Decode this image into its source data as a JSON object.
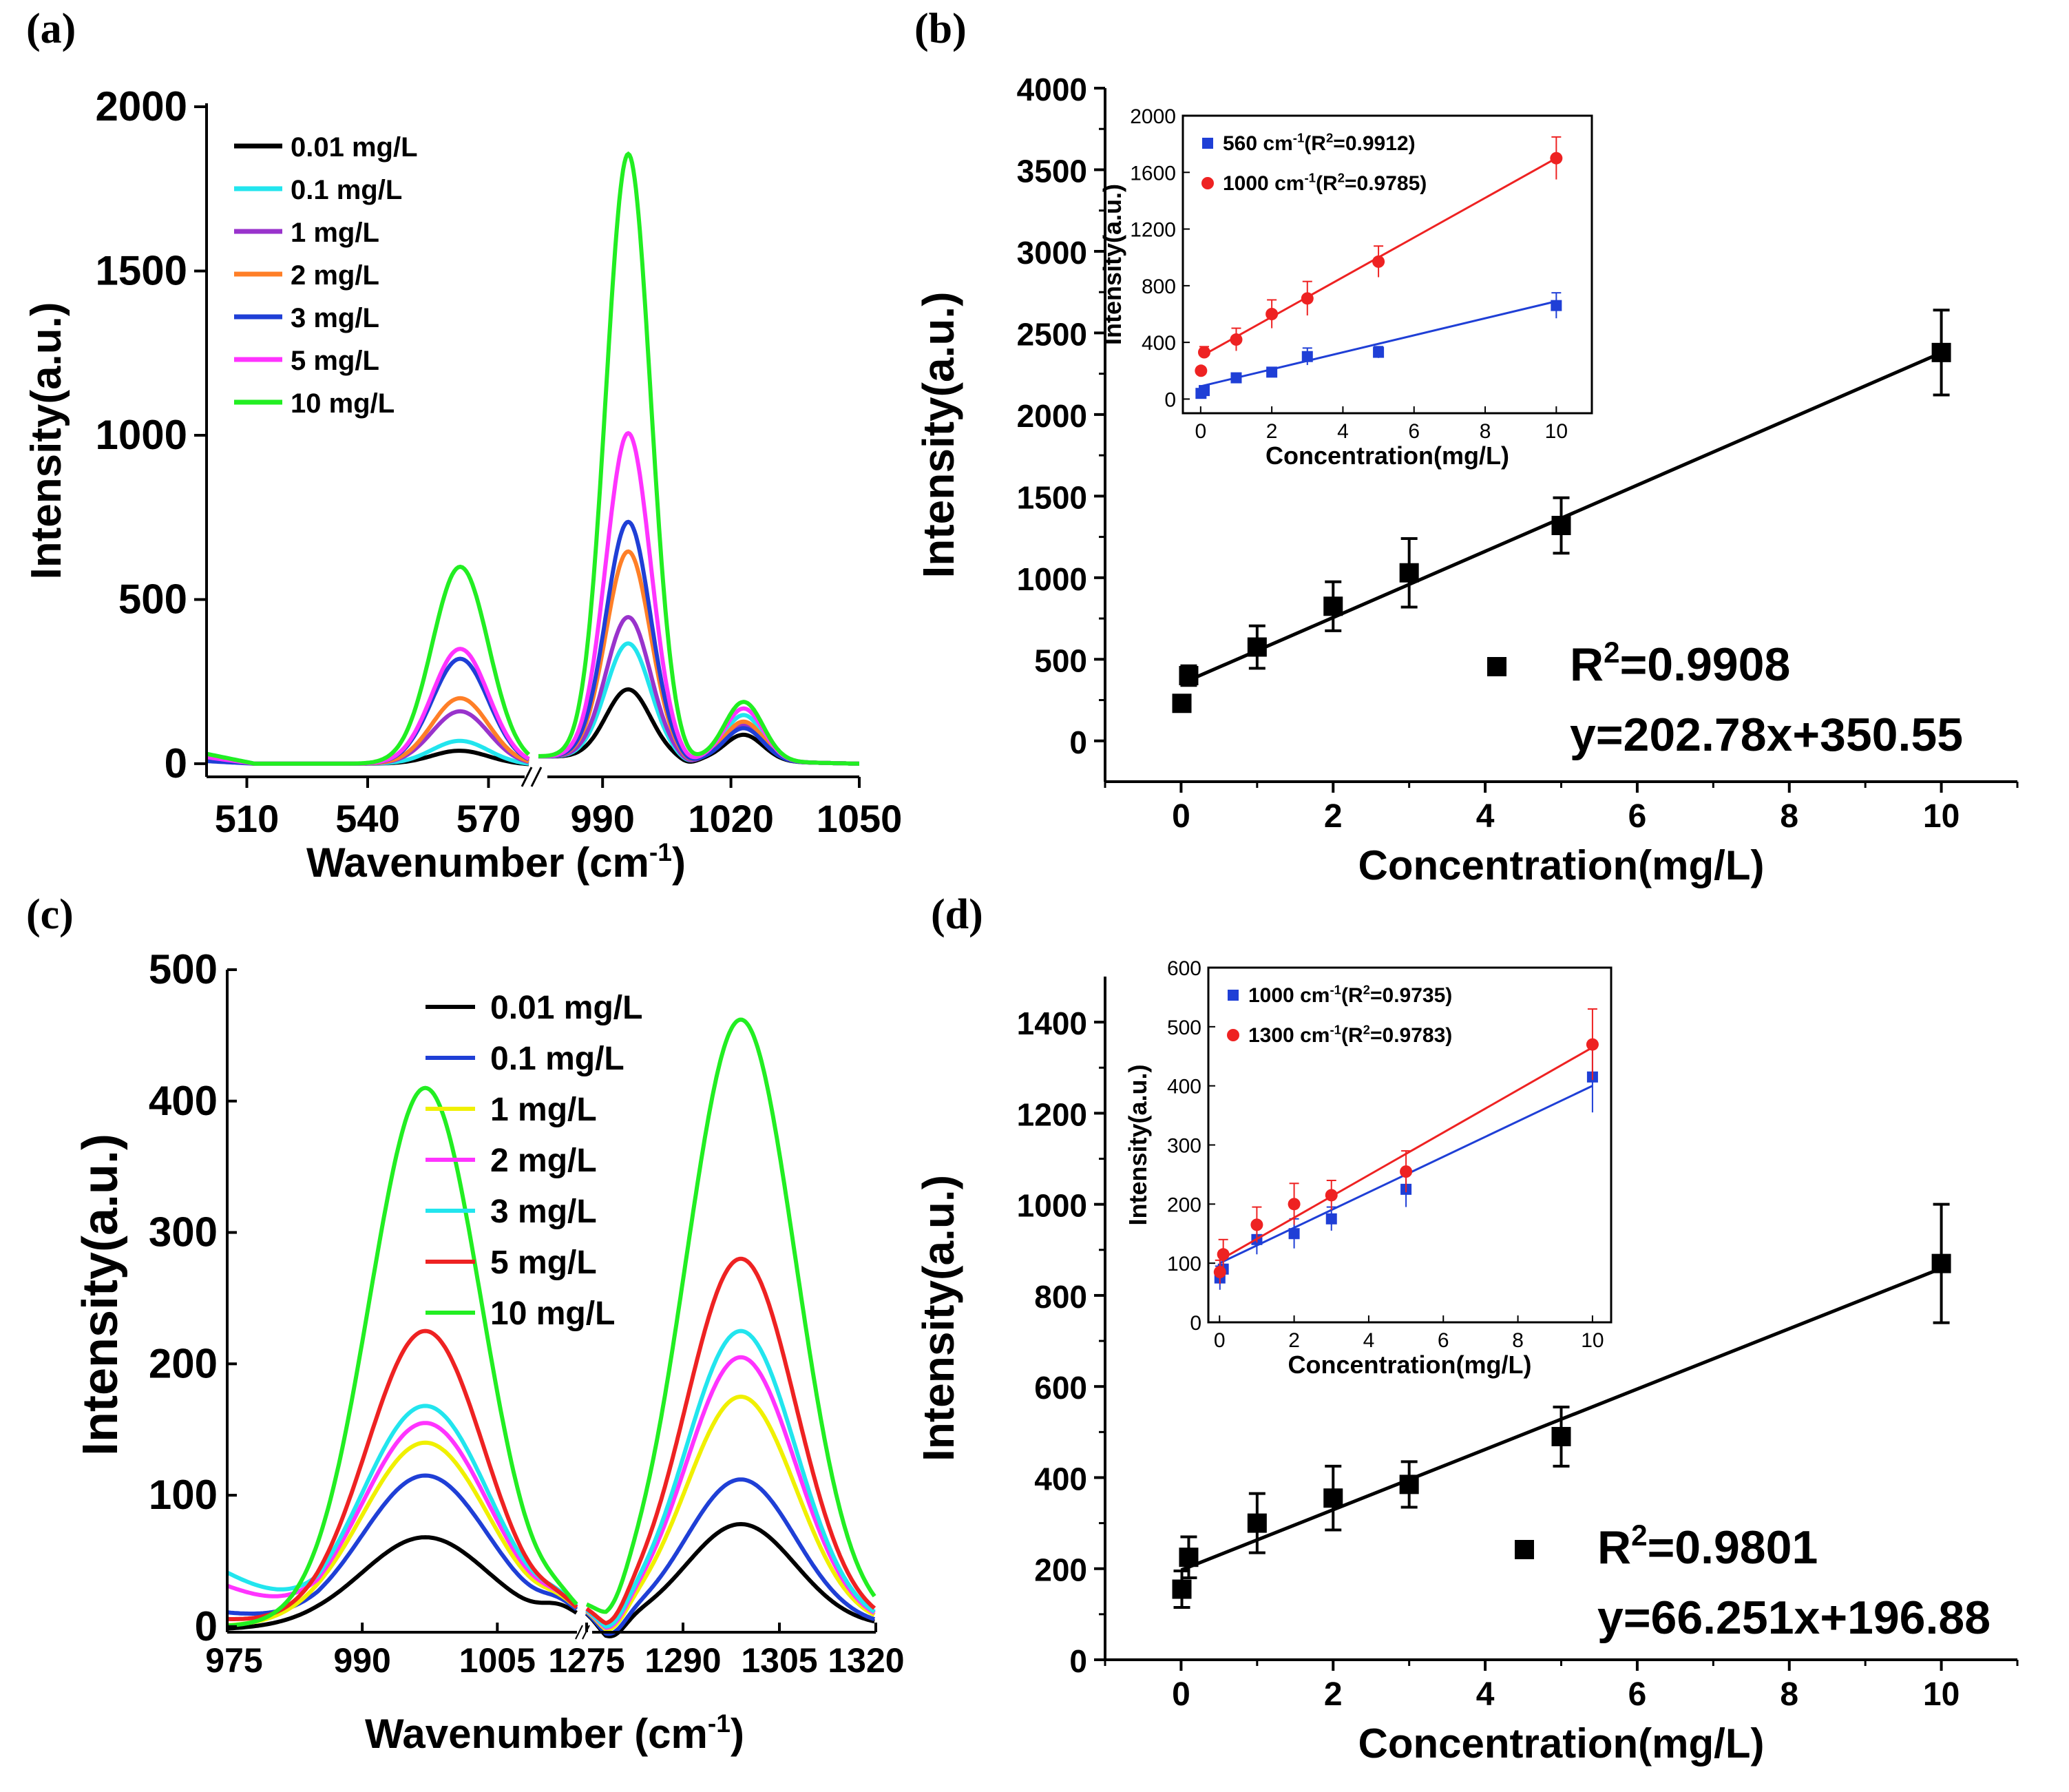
{
  "chart_data": [
    {
      "id": "a",
      "panel_label": "(a)",
      "type": "line",
      "xlabel": "Wavenumber (cm",
      "xlabel_sup": "-1",
      "xlabel_end": ")",
      "ylabel": "Intensity(a.u.)",
      "ylim": [
        -40,
        2000
      ],
      "yticks": [
        "0",
        "500",
        "1000",
        "1500",
        "2000"
      ],
      "x_segments": [
        {
          "range": [
            500,
            580
          ],
          "ticks": [
            "510",
            "540",
            "570"
          ]
        },
        {
          "range": [
            975,
            1050
          ],
          "ticks": [
            "990",
            "1020",
            "1050"
          ]
        }
      ],
      "series": [
        {
          "name": "0.01 mg/L",
          "color": "#000000",
          "peak1": 40,
          "peak2": 210,
          "peak3": 80
        },
        {
          "name": "0.1 mg/L",
          "color": "#22e5ee",
          "peak1": 70,
          "peak2": 350,
          "peak3": 140
        },
        {
          "name": "1 mg/L",
          "color": "#9933cc",
          "peak1": 160,
          "peak2": 430,
          "peak3": 110
        },
        {
          "name": "2 mg/L",
          "color": "#ff7f27",
          "peak1": 200,
          "peak2": 630,
          "peak3": 120
        },
        {
          "name": "3 mg/L",
          "color": "#1f3fd6",
          "peak1": 320,
          "peak2": 720,
          "peak3": 100
        },
        {
          "name": "5 mg/L",
          "color": "#ff33ff",
          "peak1": 350,
          "peak2": 990,
          "peak3": 160
        },
        {
          "name": "10 mg/L",
          "color": "#22ee22",
          "peak1": 600,
          "peak2": 1840,
          "peak3": 180
        }
      ]
    },
    {
      "id": "b",
      "panel_label": "(b)",
      "type": "scatter",
      "xlabel": "Concentration(mg/L)",
      "ylabel": "Intensity(a.u.)",
      "xlim": [
        -1,
        11
      ],
      "ylim": [
        -250,
        4000
      ],
      "xticks": [
        "0",
        "2",
        "4",
        "6",
        "8",
        "10"
      ],
      "yticks": [
        "0",
        "500",
        "1000",
        "1500",
        "2000",
        "2500",
        "3000",
        "3500",
        "4000"
      ],
      "points": [
        {
          "x": 0.01,
          "y": 230,
          "err": 0
        },
        {
          "x": 0.1,
          "y": 400,
          "err": 60
        },
        {
          "x": 1,
          "y": 575,
          "err": 130
        },
        {
          "x": 2,
          "y": 825,
          "err": 150
        },
        {
          "x": 3,
          "y": 1030,
          "err": 210
        },
        {
          "x": 5,
          "y": 1320,
          "err": 170
        },
        {
          "x": 10,
          "y": 2380,
          "err": 260
        }
      ],
      "fit": {
        "slope": 202.78,
        "intercept": 350.55
      },
      "r2_label": "R",
      "r2_sup": "2",
      "r2_value": "=0.9908",
      "equation": "y=202.78x+350.55",
      "inset": {
        "xlabel": "Concentration(mg/L)",
        "ylabel": "Intensity(a.u.)",
        "xlim": [
          -0.5,
          11
        ],
        "ylim": [
          -100,
          2000
        ],
        "xticks": [
          "0",
          "2",
          "4",
          "6",
          "8",
          "10"
        ],
        "yticks": [
          "0",
          "400",
          "800",
          "1200",
          "1600",
          "2000"
        ],
        "series": [
          {
            "name": "560 cm",
            "sup": "-1",
            "r2": "(R",
            "r2sup": "2",
            "r2val": "=0.9912)",
            "color": "#1f3fd6",
            "marker": "square",
            "points": [
              [
                0.01,
                40,
                0
              ],
              [
                0.1,
                60,
                30
              ],
              [
                1,
                150,
                25
              ],
              [
                2,
                190,
                30
              ],
              [
                3,
                300,
                60
              ],
              [
                5,
                330,
                40
              ],
              [
                10,
                660,
                90
              ]
            ],
            "fit": {
              "slope": 60,
              "intercept": 90
            }
          },
          {
            "name": "1000 cm",
            "sup": "-1",
            "r2": "(R",
            "r2sup": "2",
            "r2val": "=0.9785)",
            "color": "#ee2222",
            "marker": "circle",
            "points": [
              [
                0.01,
                200,
                0
              ],
              [
                0.1,
                330,
                40
              ],
              [
                1,
                420,
                80
              ],
              [
                2,
                600,
                100
              ],
              [
                3,
                710,
                120
              ],
              [
                5,
                970,
                110
              ],
              [
                10,
                1700,
                150
              ]
            ],
            "fit": {
              "slope": 140,
              "intercept": 300
            }
          }
        ]
      }
    },
    {
      "id": "c",
      "panel_label": "(c)",
      "type": "line",
      "xlabel": "Wavenumber (cm",
      "xlabel_sup": "-1",
      "xlabel_end": ")",
      "ylabel": "Intensity(a.u.)",
      "ylim": [
        -20,
        500
      ],
      "yticks": [
        "0",
        "100",
        "200",
        "300",
        "400",
        "500"
      ],
      "x_segments": [
        {
          "range": [
            975,
            1014
          ],
          "ticks": [
            "975",
            "990",
            "1005"
          ]
        },
        {
          "range": [
            1275,
            1320
          ],
          "ticks": [
            "1275",
            "1290",
            "1305",
            "1320"
          ]
        }
      ],
      "series": [
        {
          "name": "0.01 mg/L",
          "color": "#000000",
          "peak1": 68,
          "peak2": 78
        },
        {
          "name": "0.1 mg/L",
          "color": "#1f3fd6",
          "peak1": 115,
          "peak2": 112
        },
        {
          "name": "1 mg/L",
          "color": "#f0f000",
          "peak1": 140,
          "peak2": 175
        },
        {
          "name": "2 mg/L",
          "color": "#ff33ff",
          "peak1": 155,
          "peak2": 205
        },
        {
          "name": "3 mg/L",
          "color": "#22e5ee",
          "peak1": 168,
          "peak2": 225
        },
        {
          "name": "5 mg/L",
          "color": "#ee2222",
          "peak1": 225,
          "peak2": 280
        },
        {
          "name": "10 mg/L",
          "color": "#22ee22",
          "peak1": 410,
          "peak2": 462
        }
      ]
    },
    {
      "id": "d",
      "panel_label": "(d)",
      "type": "scatter",
      "xlabel": "Concentration(mg/L)",
      "ylabel": "Intensity(a.u.)",
      "xlim": [
        -1,
        11
      ],
      "ylim": [
        0,
        1500
      ],
      "xticks": [
        "0",
        "2",
        "4",
        "6",
        "8",
        "10"
      ],
      "yticks": [
        "0",
        "200",
        "400",
        "600",
        "800",
        "1000",
        "1200",
        "1400"
      ],
      "points": [
        {
          "x": 0.01,
          "y": 155,
          "err": 40
        },
        {
          "x": 0.1,
          "y": 225,
          "err": 45
        },
        {
          "x": 1,
          "y": 300,
          "err": 65
        },
        {
          "x": 2,
          "y": 355,
          "err": 70
        },
        {
          "x": 3,
          "y": 385,
          "err": 50
        },
        {
          "x": 5,
          "y": 490,
          "err": 65
        },
        {
          "x": 10,
          "y": 870,
          "err": 130
        }
      ],
      "fit": {
        "slope": 66.251,
        "intercept": 196.88
      },
      "r2_label": "R",
      "r2_sup": "2",
      "r2_value": "=0.9801",
      "equation": "y=66.251x+196.88",
      "inset": {
        "xlabel": "Concentration(mg/L)",
        "ylabel": "Intensity(a.u.)",
        "xlim": [
          -0.3,
          10.5
        ],
        "ylim": [
          0,
          600
        ],
        "xticks": [
          "0",
          "2",
          "4",
          "6",
          "8",
          "10"
        ],
        "yticks": [
          "0",
          "100",
          "200",
          "300",
          "400",
          "500",
          "600"
        ],
        "series": [
          {
            "name": "1000 cm",
            "sup": "-1",
            "r2": "(R",
            "r2sup": "2",
            "r2val": "=0.9735)",
            "color": "#1f3fd6",
            "marker": "square",
            "points": [
              [
                0.01,
                75,
                20
              ],
              [
                0.1,
                90,
                20
              ],
              [
                1,
                140,
                25
              ],
              [
                2,
                150,
                25
              ],
              [
                3,
                175,
                20
              ],
              [
                5,
                225,
                30
              ],
              [
                10,
                415,
                60
              ]
            ],
            "fit": {
              "slope": 30,
              "intercept": 100
            }
          },
          {
            "name": "1300 cm",
            "sup": "-1",
            "r2": "(R",
            "r2sup": "2",
            "r2val": "=0.9783)",
            "color": "#ee2222",
            "marker": "circle",
            "points": [
              [
                0.01,
                85,
                20
              ],
              [
                0.1,
                115,
                25
              ],
              [
                1,
                165,
                30
              ],
              [
                2,
                200,
                35
              ],
              [
                3,
                215,
                25
              ],
              [
                5,
                255,
                35
              ],
              [
                10,
                470,
                60
              ]
            ],
            "fit": {
              "slope": 36,
              "intercept": 105
            }
          }
        ]
      }
    }
  ]
}
